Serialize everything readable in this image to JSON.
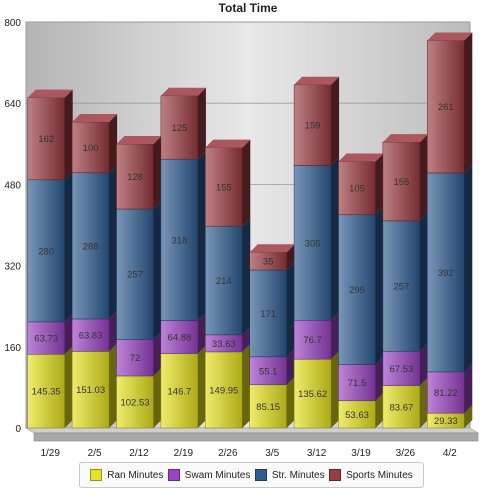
{
  "chart_data": {
    "type": "bar",
    "stacked": true,
    "title": "Total Time",
    "xlabel": "",
    "ylabel": "",
    "ylim": [
      0,
      800
    ],
    "yticks": [
      0,
      160,
      320,
      480,
      640,
      800
    ],
    "grid": true,
    "legend_position": "bottom",
    "categories": [
      "1/29",
      "2/5",
      "2/12",
      "2/19",
      "2/26",
      "3/5",
      "3/12",
      "3/19",
      "3/26",
      "4/2"
    ],
    "series": [
      {
        "name": "Ran Minutes",
        "color": "#e6e21e",
        "values": [
          145.35,
          151.03,
          102.53,
          146.7,
          149.95,
          85.15,
          135.62,
          53.63,
          83.67,
          29.33
        ],
        "labels": [
          "145.35",
          "151.03",
          "102.53",
          "146.7",
          "149.95",
          "85.15",
          "135.62",
          "53.63",
          "83.67",
          "29.33"
        ]
      },
      {
        "name": "Swam Minutes",
        "color": "#9b43c4",
        "values": [
          63.73,
          63.83,
          72,
          64.88,
          33.63,
          55.1,
          76.7,
          71.5,
          67.53,
          81.22
        ],
        "labels": [
          "63.73",
          "63.83",
          "72",
          "64.88",
          "33.63",
          "55.1",
          "76.7",
          "71.5",
          "67.53",
          "81.22"
        ]
      },
      {
        "name": "Str. Minutes",
        "color": "#2f5d92",
        "values": [
          280,
          288,
          257,
          318,
          214,
          171,
          305,
          295,
          257,
          392
        ],
        "labels": [
          "280",
          "288",
          "257",
          "318",
          "214",
          "171",
          "305",
          "295",
          "257",
          "392"
        ]
      },
      {
        "name": "Sports Minutes",
        "color": "#9b3b42",
        "values": [
          162,
          100,
          128,
          125,
          155,
          35,
          159,
          105,
          155,
          261
        ],
        "labels": [
          "162",
          "100",
          "128",
          "125",
          "155",
          "35",
          "159",
          "105",
          "155",
          "261"
        ]
      }
    ]
  }
}
